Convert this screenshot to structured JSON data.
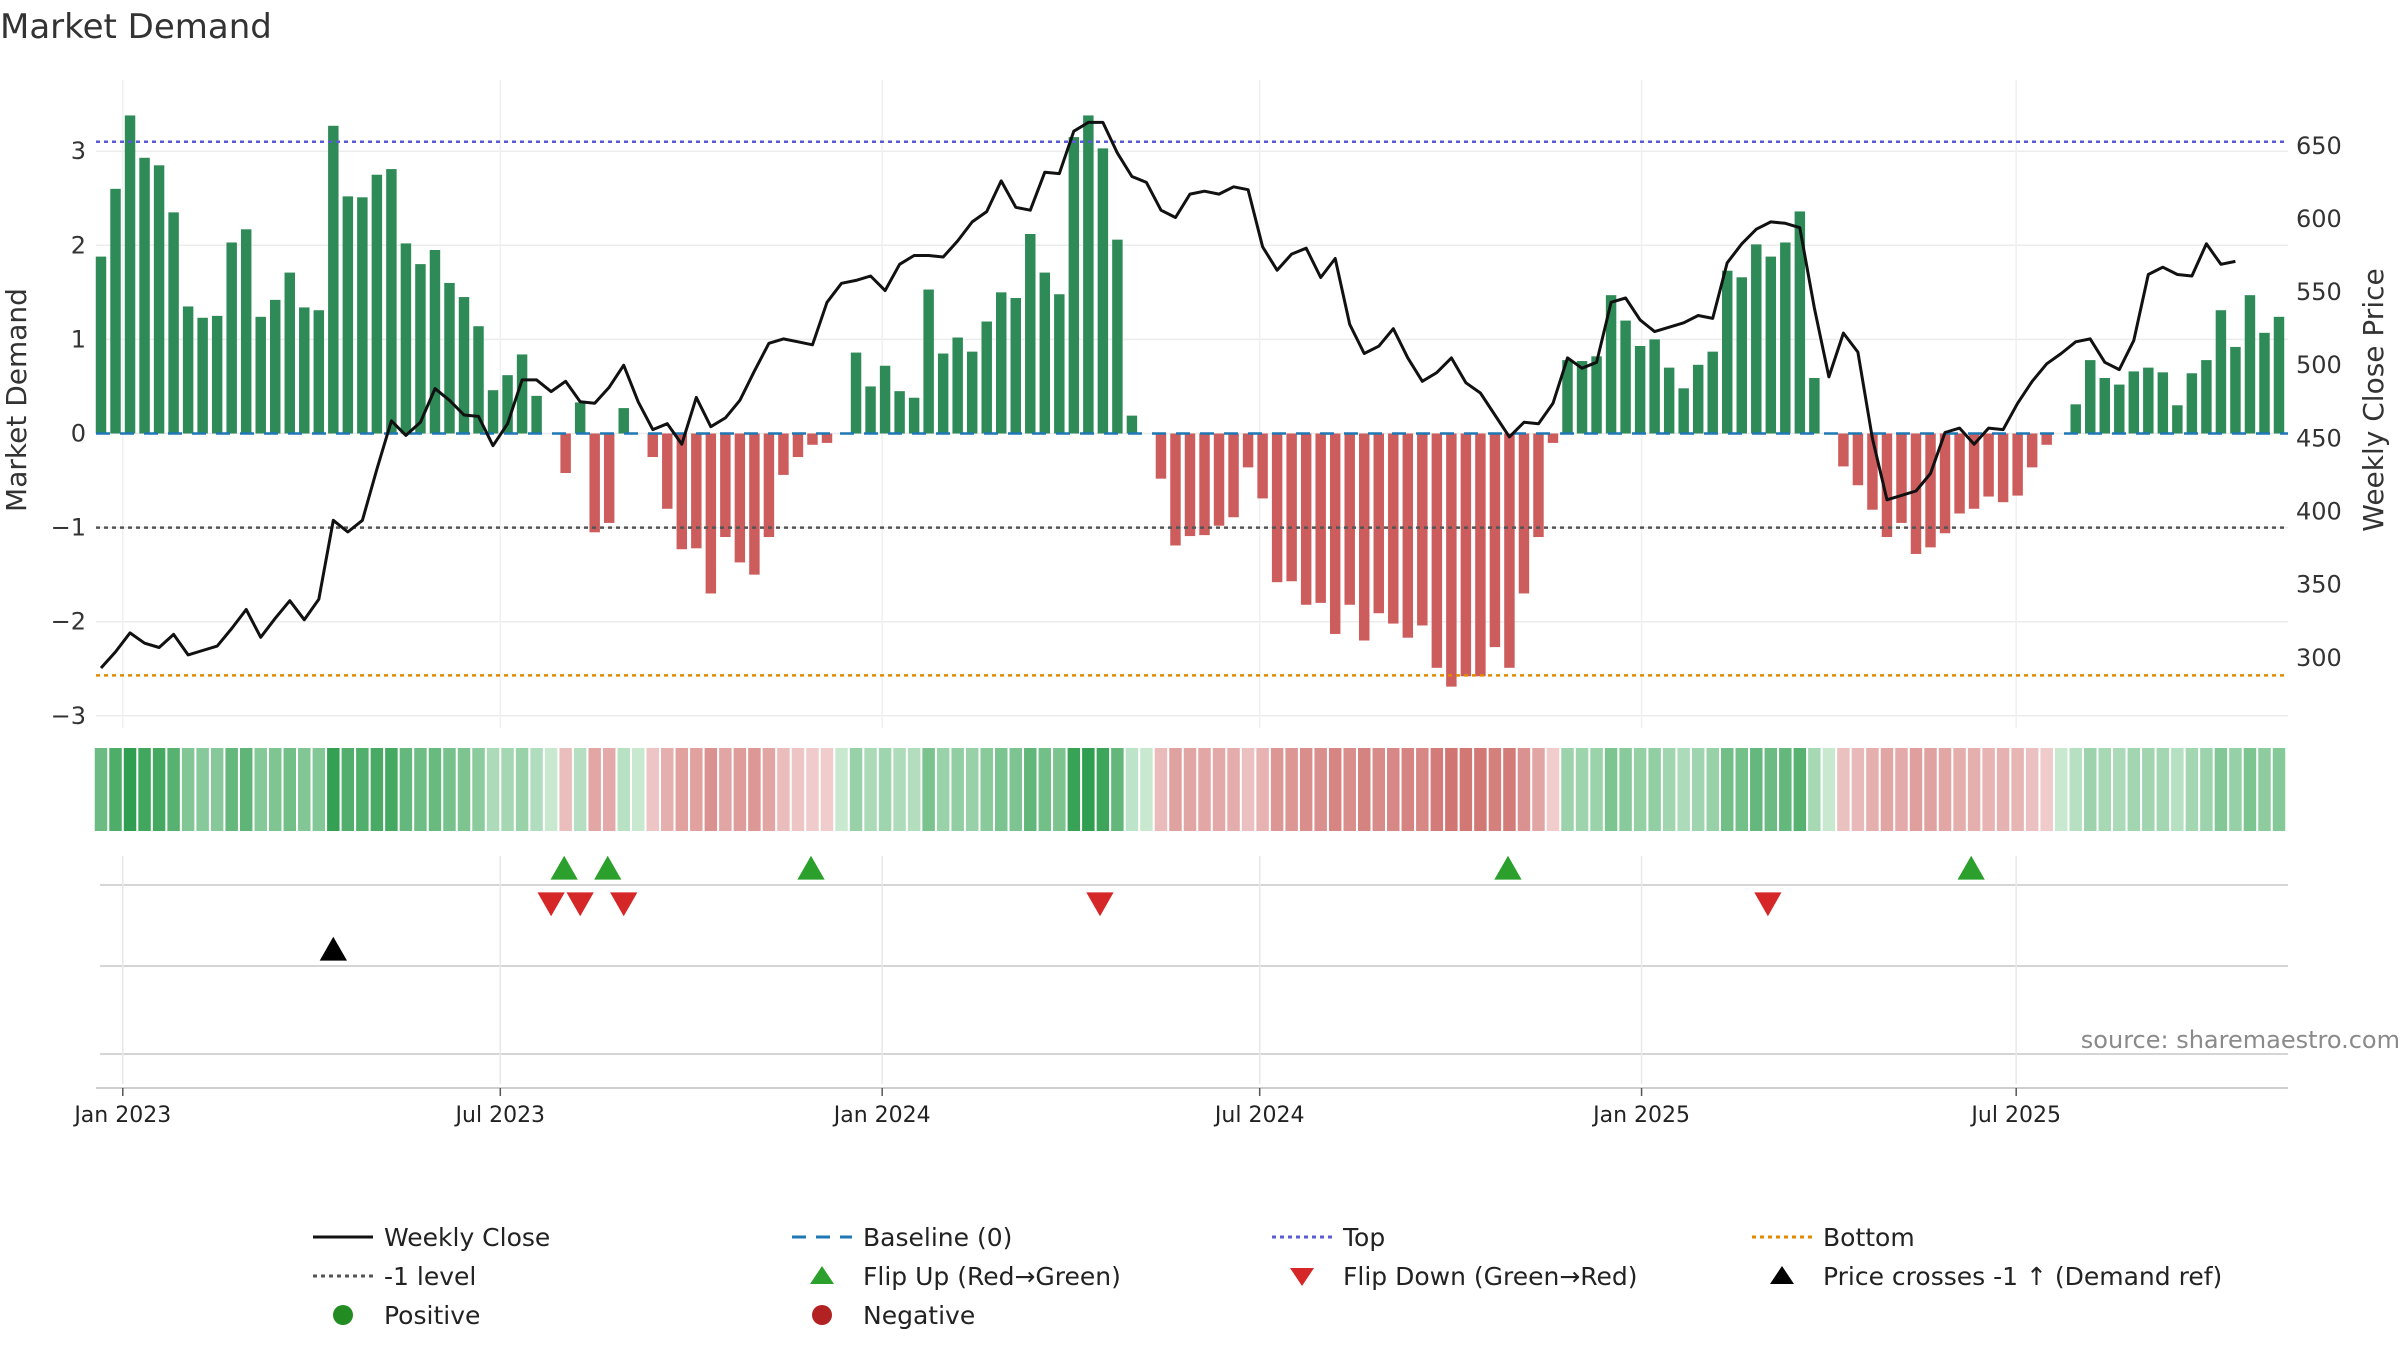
{
  "chart_data": {
    "type": "bar",
    "title": "Market Demand",
    "ylabel": "Market Demand",
    "y2label": "Weekly Close Price",
    "ylim": [
      -3.3,
      3.7
    ],
    "y2lim": [
      252,
      695
    ],
    "yticks": [
      "3",
      "2",
      "1",
      "0",
      "−1",
      "−2",
      "−3"
    ],
    "ytick_values": [
      3,
      2,
      1,
      0,
      -1,
      -2,
      -3
    ],
    "y2ticks": [
      "650",
      "600",
      "550",
      "500",
      "450",
      "400",
      "350",
      "300"
    ],
    "y2tick_values": [
      650,
      600,
      550,
      500,
      450,
      400,
      350,
      300
    ],
    "date_ticks": [
      {
        "label": "Jan 2023",
        "week": 1.5
      },
      {
        "label": "Jul 2023",
        "week": 27.5
      },
      {
        "label": "Jan 2024",
        "week": 53.8
      },
      {
        "label": "Jul 2024",
        "week": 79.8
      },
      {
        "label": "Jan 2025",
        "week": 106.1
      },
      {
        "label": "Jul 2025",
        "week": 131.9
      }
    ],
    "reference_lines": {
      "top": 3.1,
      "bottom": -2.57,
      "minus_one": -1,
      "baseline": 0
    },
    "colors": {
      "pos_bar": "#2e8a57",
      "neg_bar": "#cd5c5c",
      "close_line": "#111111",
      "baseline": "#1f77b4",
      "top": "#5b5bd6",
      "bottom": "#e08a00",
      "minus_one": "#555555",
      "flip_up": "#2ca02c",
      "flip_down": "#d62728",
      "cross": "#000000",
      "positive_dot": "#228b22",
      "negative_dot": "#b22222"
    },
    "demand": [
      1.88,
      2.6,
      3.38,
      2.93,
      2.85,
      2.35,
      1.35,
      1.23,
      1.25,
      2.03,
      2.17,
      1.24,
      1.42,
      1.71,
      1.34,
      1.31,
      3.27,
      2.52,
      2.51,
      2.75,
      2.81,
      2.02,
      1.8,
      1.95,
      1.6,
      1.45,
      1.14,
      0.46,
      0.62,
      0.84,
      0.4,
      0.0,
      -0.42,
      0.33,
      -1.05,
      -0.95,
      0.27,
      0.0,
      -0.25,
      -0.8,
      -1.23,
      -1.22,
      -1.7,
      -1.1,
      -1.37,
      -1.5,
      -1.1,
      -0.44,
      -0.25,
      -0.12,
      -0.1,
      0.0,
      0.86,
      0.5,
      0.72,
      0.45,
      0.38,
      1.53,
      0.85,
      1.02,
      0.87,
      1.19,
      1.5,
      1.44,
      2.12,
      1.71,
      1.48,
      3.15,
      3.38,
      3.03,
      2.06,
      0.19,
      0.0,
      -0.48,
      -1.19,
      -1.09,
      -1.08,
      -0.98,
      -0.89,
      -0.36,
      -0.69,
      -1.58,
      -1.57,
      -1.82,
      -1.8,
      -2.13,
      -1.82,
      -2.2,
      -1.91,
      -2.02,
      -2.17,
      -2.04,
      -2.49,
      -2.69,
      -2.58,
      -2.58,
      -2.27,
      -2.49,
      -1.7,
      -1.1,
      -0.1,
      0.78,
      0.77,
      0.82,
      1.47,
      1.2,
      0.93,
      1.0,
      0.7,
      0.48,
      0.73,
      0.87,
      1.73,
      1.66,
      2.01,
      1.88,
      2.03,
      2.36,
      0.59,
      0.0,
      -0.35,
      -0.55,
      -0.81,
      -1.1,
      -0.95,
      -1.28,
      -1.21,
      -1.06,
      -0.85,
      -0.8,
      -0.67,
      -0.73,
      -0.66,
      -0.36,
      -0.12,
      0.0,
      0.31,
      0.78,
      0.59,
      0.52,
      0.66,
      0.7,
      0.65,
      0.3,
      0.64,
      0.78,
      1.31,
      0.92,
      1.47,
      1.07,
      1.24
    ],
    "close": [
      293,
      304,
      317,
      310,
      307,
      316,
      302,
      305,
      308,
      320,
      333,
      314,
      327,
      339,
      326,
      340,
      394,
      386,
      394,
      429,
      462,
      452,
      461,
      484,
      476,
      466,
      465,
      445,
      460,
      490,
      490,
      482,
      489,
      475,
      474,
      485,
      500,
      475,
      456,
      460,
      446,
      478,
      458,
      464,
      476,
      496,
      515,
      518,
      516,
      514,
      543,
      556,
      558,
      561,
      551,
      569,
      575,
      575,
      574,
      585,
      598,
      605,
      626,
      608,
      606,
      632,
      631,
      660,
      666,
      666,
      645,
      629,
      625,
      606,
      601,
      617,
      619,
      617,
      622,
      620,
      581,
      565,
      576,
      580,
      560,
      573,
      528,
      508,
      513,
      525,
      505,
      489,
      495,
      505,
      488,
      481,
      466,
      451,
      461,
      460,
      474,
      505,
      498,
      502,
      543,
      546,
      531,
      523,
      526,
      529,
      534,
      532,
      570,
      583,
      593,
      598,
      597,
      594,
      539,
      492,
      522,
      509,
      450,
      408,
      411,
      414,
      426,
      454,
      457,
      446,
      457,
      456,
      474,
      489,
      501,
      508,
      516,
      518,
      502,
      497,
      517,
      562,
      567,
      562,
      561,
      583,
      569,
      571
    ],
    "flip_up_weeks": [
      31.9,
      34.9,
      48.9,
      96.9,
      128.8
    ],
    "flip_down_weeks": [
      31.0,
      33.0,
      36.0,
      68.8,
      114.8
    ],
    "cross_week": 16.0,
    "legend": [
      {
        "label": "Weekly Close",
        "symbol": "solid-line"
      },
      {
        "label": "Baseline (0)",
        "symbol": "dashed-line"
      },
      {
        "label": "Top",
        "symbol": "dotted-line"
      },
      {
        "label": "Bottom",
        "symbol": "dotted-line"
      },
      {
        "label": "-1 level",
        "symbol": "dotted-line"
      },
      {
        "label": "Flip Up (Red→Green)",
        "symbol": "triangle-up"
      },
      {
        "label": "Flip Down (Green→Red)",
        "symbol": "triangle-down"
      },
      {
        "label": "Price crosses -1 ↑ (Demand ref)",
        "symbol": "triangle-up"
      },
      {
        "label": "Positive",
        "symbol": "circle"
      },
      {
        "label": "Negative",
        "symbol": "circle"
      }
    ],
    "source": "source: sharemaestro.com"
  }
}
